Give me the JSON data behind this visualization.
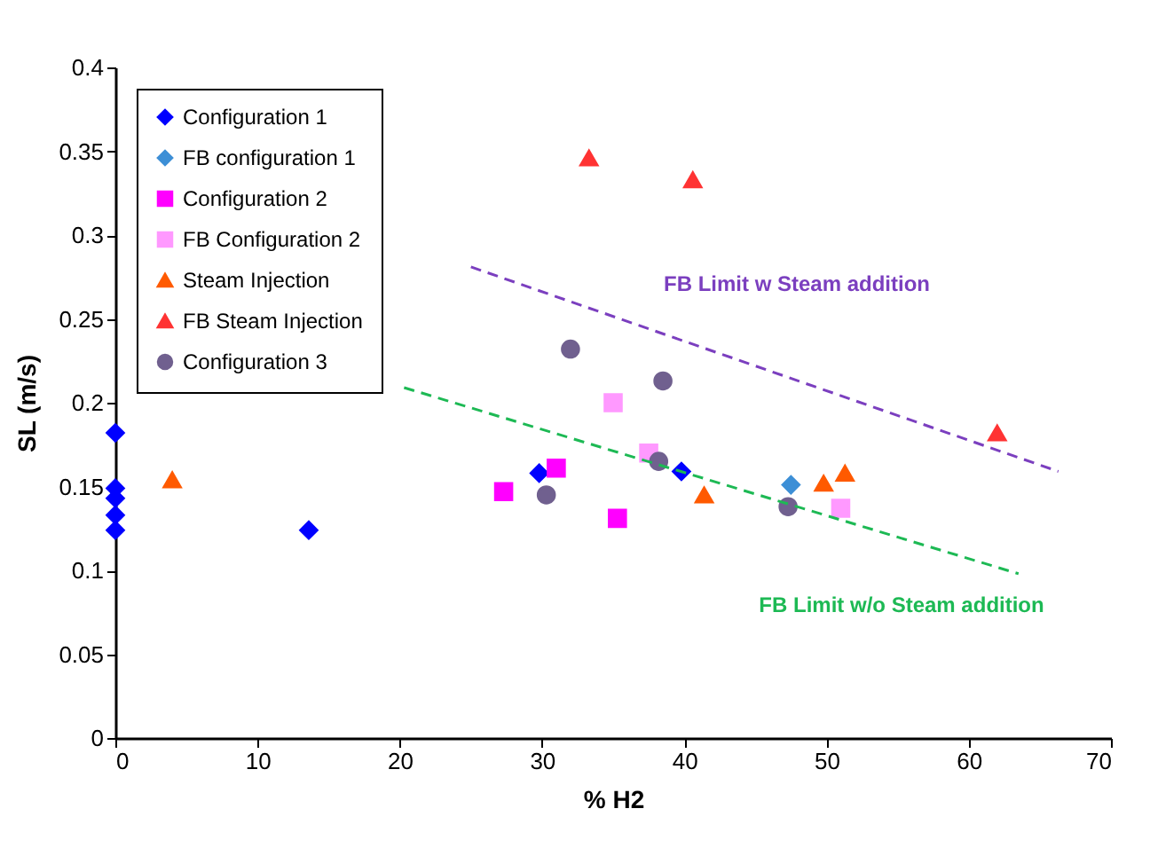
{
  "chart_data": {
    "type": "scatter",
    "xlabel": "% H2",
    "ylabel": "SL (m/s)",
    "xlim": [
      0,
      70
    ],
    "xticks": [
      0,
      10,
      20,
      30,
      40,
      50,
      60,
      70
    ],
    "ylim": [
      0,
      0.4
    ],
    "yticks": [
      0,
      0.05,
      0.1,
      0.15,
      0.2,
      0.25,
      0.3,
      0.35,
      0.4
    ],
    "grid": false,
    "legend": "top left",
    "series": [
      {
        "name": "Configuration 1",
        "color": "#0000ff",
        "marker": "diamond",
        "x": [
          0,
          0,
          0,
          0,
          0,
          13.6,
          29.8,
          39.8
        ],
        "values": [
          0.182,
          0.149,
          0.143,
          0.133,
          0.124,
          0.124,
          0.158,
          0.159
        ]
      },
      {
        "name": "FB configuration 1",
        "color": "#3d8fd6",
        "marker": "diamond",
        "x": [
          47.5
        ],
        "values": [
          0.151
        ]
      },
      {
        "name": "Configuration 2",
        "color": "#ff00ff",
        "marker": "square",
        "x": [
          27.3,
          31,
          35.3
        ],
        "values": [
          0.147,
          0.161,
          0.131
        ]
      },
      {
        "name": "FB Configuration 2",
        "color": "#ff99ff",
        "marker": "square",
        "x": [
          35,
          37.5,
          51
        ],
        "values": [
          0.2,
          0.17,
          0.137
        ]
      },
      {
        "name": "Steam Injection",
        "color": "#ff5a00",
        "marker": "triangle",
        "x": [
          4,
          41.4,
          49.8,
          51.3
        ],
        "values": [
          0.154,
          0.145,
          0.152,
          0.158
        ]
      },
      {
        "name": "FB Steam Injection",
        "color": "#ff3333",
        "marker": "triangle",
        "x": [
          33.3,
          40.6,
          62
        ],
        "values": [
          0.346,
          0.333,
          0.182
        ]
      },
      {
        "name": "Configuration 3",
        "color": "#70608f",
        "marker": "circle",
        "x": [
          32,
          30.3,
          38.5,
          38.2,
          47.3
        ],
        "values": [
          0.232,
          0.145,
          0.213,
          0.165,
          0.138
        ]
      },
      {
        "type": "line",
        "color": "#7b3fbf",
        "line_style": "dashed",
        "marker": "none",
        "x": [
          25,
          66.3
        ],
        "values": [
          0.281,
          0.159
        ]
      },
      {
        "type": "line",
        "color": "#1db954",
        "line_style": "dashed",
        "marker": "none",
        "x": [
          20.3,
          63.5
        ],
        "values": [
          0.209,
          0.098
        ]
      }
    ],
    "annotations": [
      "FB Limit w Steam addition",
      "FB Limit w/o Steam addition"
    ]
  }
}
